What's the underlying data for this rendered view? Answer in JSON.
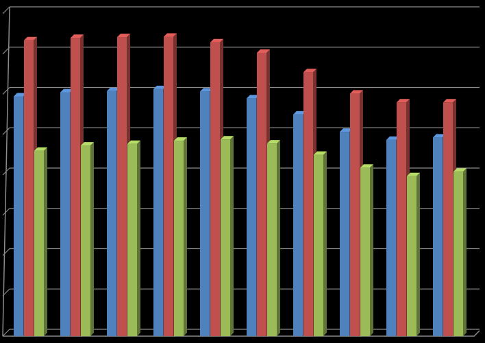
{
  "chart_data": {
    "type": "bar",
    "style": "3d-clustered-columns",
    "background": "#000000",
    "grid": true,
    "gridline_color": "#8c8c8c",
    "title": "",
    "xlabel": "",
    "ylabel": "",
    "ylim": [
      0,
      8
    ],
    "gridline_count": 8,
    "categories": [
      "",
      "",
      "",
      "",
      "",
      "",
      "",
      "",
      "",
      ""
    ],
    "series": [
      {
        "color": "#4f81bd",
        "values": [
          5.95,
          6.05,
          6.08,
          6.13,
          6.07,
          5.9,
          5.5,
          5.07,
          4.87,
          4.93
        ]
      },
      {
        "color": "#c0504d",
        "values": [
          7.34,
          7.4,
          7.42,
          7.43,
          7.29,
          7.03,
          6.55,
          6.02,
          5.8,
          5.8
        ]
      },
      {
        "color": "#9bbb59",
        "values": [
          4.6,
          4.73,
          4.77,
          4.85,
          4.88,
          4.78,
          4.5,
          4.18,
          3.97,
          4.08
        ]
      }
    ]
  }
}
